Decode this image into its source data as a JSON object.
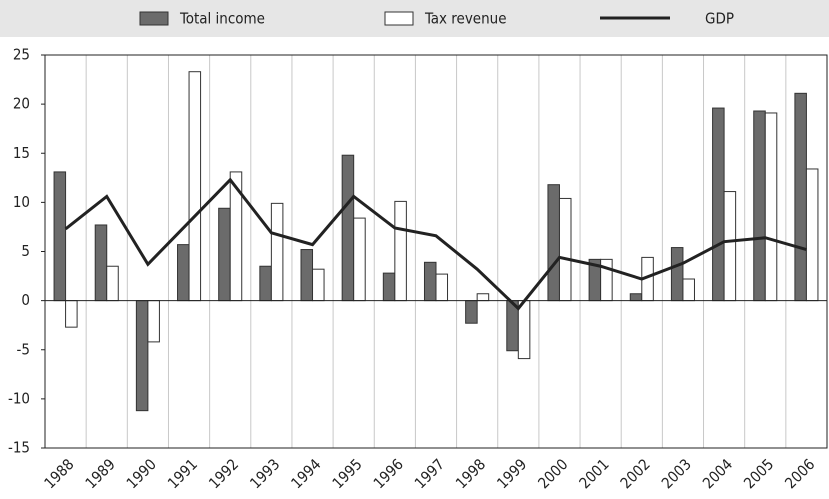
{
  "chart_data": {
    "type": "bar",
    "categories": [
      "1988",
      "1989",
      "1990",
      "1991",
      "1992",
      "1993",
      "1994",
      "1995",
      "1996",
      "1997",
      "1998",
      "1999",
      "2000",
      "2001",
      "2002",
      "2003",
      "2004",
      "2005",
      "2006"
    ],
    "series": [
      {
        "name": "Total income",
        "type": "bar",
        "color": "#6b6b6b",
        "values": [
          13.1,
          7.7,
          -11.2,
          5.7,
          9.4,
          3.5,
          5.2,
          14.8,
          2.8,
          3.9,
          -2.3,
          -5.1,
          11.8,
          4.2,
          0.7,
          5.4,
          19.6,
          19.3,
          21.1
        ]
      },
      {
        "name": "Tax revenue",
        "type": "bar",
        "color": "#ffffff",
        "values": [
          -2.7,
          3.5,
          -4.2,
          23.3,
          13.1,
          9.9,
          3.2,
          8.4,
          10.1,
          2.7,
          0.7,
          -5.9,
          10.4,
          4.2,
          4.4,
          2.2,
          11.1,
          19.1,
          13.4
        ]
      },
      {
        "name": "GDP",
        "type": "line",
        "color": "#222222",
        "values": [
          7.3,
          10.6,
          3.7,
          8.0,
          12.3,
          6.9,
          5.7,
          10.6,
          7.4,
          6.6,
          3.2,
          -0.8,
          4.4,
          3.5,
          2.2,
          3.8,
          6.0,
          6.4,
          5.2
        ]
      }
    ],
    "ylim": [
      -15,
      25
    ],
    "yticks": [
      -15,
      -10,
      -5,
      0,
      5,
      10,
      15,
      20,
      25
    ]
  }
}
